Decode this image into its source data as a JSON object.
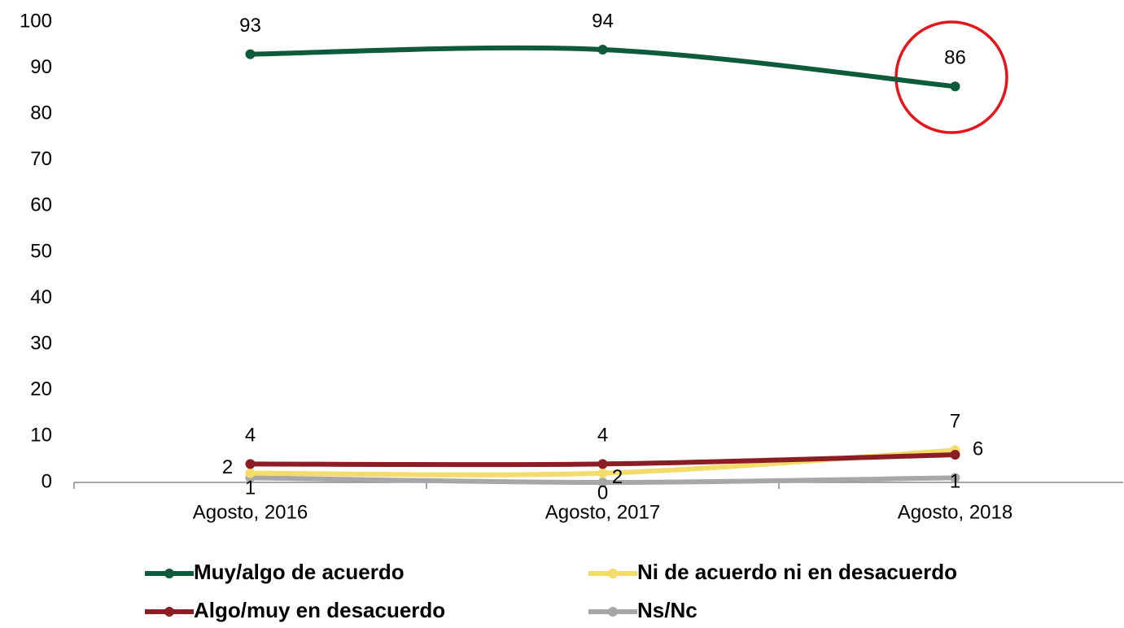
{
  "chart_data": {
    "type": "line",
    "categories": [
      "Agosto, 2016",
      "Agosto, 2017",
      "Agosto, 2018"
    ],
    "series": [
      {
        "name": "Muy/algo de acuerdo",
        "color": "#0e5b3c",
        "values": [
          93,
          94,
          86
        ]
      },
      {
        "name": "Ni de acuerdo ni en desacuerdo",
        "color": "#f4dc6a",
        "values": [
          2,
          2,
          7
        ]
      },
      {
        "name": "Algo/muy en desacuerdo",
        "color": "#8c1d25",
        "values": [
          4,
          4,
          6
        ]
      },
      {
        "name": "Ns/Nc",
        "color": "#a7a7a9",
        "values": [
          1,
          0,
          1
        ]
      }
    ],
    "ylim": [
      0,
      100
    ],
    "yticks": [
      0,
      10,
      20,
      30,
      40,
      50,
      60,
      70,
      80,
      90,
      100
    ],
    "grid": false
  }
}
